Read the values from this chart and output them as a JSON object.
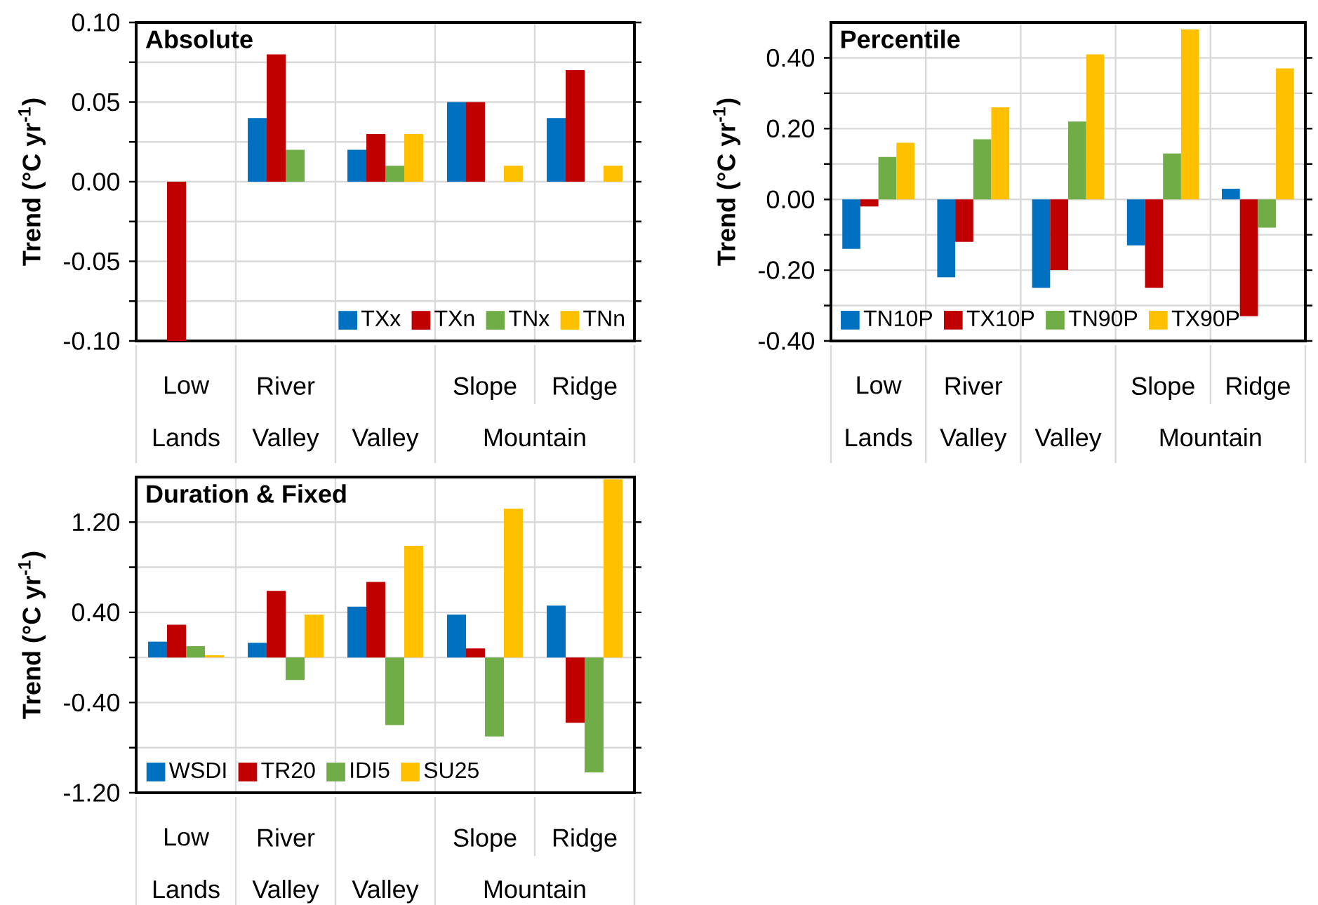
{
  "chart_data": [
    {
      "type": "bar",
      "title": "Absolute",
      "ylabel": "Trend (°C yr$^{-1}$)",
      "categories": [
        "Low",
        "River",
        null,
        "Slope",
        "Ridge"
      ],
      "annotations": [
        "Lands",
        "Valley",
        "Valley",
        "Mountain"
      ],
      "series": [
        {
          "name": "TXx",
          "color": "#0070c0",
          "values": [
            0,
            0.04,
            0.02,
            0.05,
            0.04
          ]
        },
        {
          "name": "TXn",
          "color": "#c00000",
          "values": [
            -0.1,
            0.08,
            0.03,
            0.05,
            0.07
          ]
        },
        {
          "name": "TNx",
          "color": "#70ad47",
          "values": [
            0,
            0.02,
            0.01,
            0,
            0
          ]
        },
        {
          "name": "TNn",
          "color": "#ffc000",
          "values": [
            0,
            0,
            0.03,
            0.01,
            0.01
          ]
        }
      ],
      "ylim": [
        -0.1,
        0.1
      ],
      "yticks": [
        {
          "value": -0.1,
          "label": "-0.10"
        },
        {
          "value": -0.075,
          "label": null
        },
        {
          "value": -0.05,
          "label": "-0.05"
        },
        {
          "value": -0.025,
          "label": null
        },
        {
          "value": 0,
          "label": "0.00"
        },
        {
          "value": 0.025,
          "label": null
        },
        {
          "value": 0.05,
          "label": "0.05"
        },
        {
          "value": 0.075,
          "label": null
        },
        {
          "value": 0.1,
          "label": "0.10"
        }
      ],
      "grid": true,
      "legend": "bottom right"
    },
    {
      "type": "bar",
      "title": "Percentile",
      "ylabel": "Trend (°C yr$^{-1}$)",
      "categories": [
        "Low",
        "River",
        null,
        "Slope",
        "Ridge"
      ],
      "annotations": [
        "Lands",
        "Valley",
        "Valley",
        "Mountain"
      ],
      "series": [
        {
          "name": "TN10P",
          "color": "#0070c0",
          "values": [
            -0.14,
            -0.22,
            -0.25,
            -0.13,
            0.03
          ]
        },
        {
          "name": "TX10P",
          "color": "#c00000",
          "values": [
            -0.02,
            -0.12,
            -0.2,
            -0.25,
            -0.33
          ]
        },
        {
          "name": "TN90P",
          "color": "#70ad47",
          "values": [
            0.12,
            0.17,
            0.22,
            0.13,
            -0.08
          ]
        },
        {
          "name": "TX90P",
          "color": "#ffc000",
          "values": [
            0.16,
            0.26,
            0.41,
            0.48,
            0.37
          ]
        }
      ],
      "ylim": [
        -0.4,
        0.5
      ],
      "yticks": [
        {
          "value": -0.4,
          "label": "-0.40"
        },
        {
          "value": -0.3,
          "label": null
        },
        {
          "value": -0.2,
          "label": "-0.20"
        },
        {
          "value": -0.1,
          "label": null
        },
        {
          "value": 0,
          "label": "0.00"
        },
        {
          "value": 0.1,
          "label": null
        },
        {
          "value": 0.2,
          "label": "0.20"
        },
        {
          "value": 0.3,
          "label": null
        },
        {
          "value": 0.4,
          "label": "0.40"
        }
      ],
      "grid": true,
      "legend": "bottom left"
    },
    {
      "type": "bar",
      "title": "Duration & Fixed",
      "ylabel": "Trend (°C yr$^{-1}$)",
      "categories": [
        "Low",
        "River",
        null,
        "Slope",
        "Ridge"
      ],
      "annotations": [
        "Lands",
        "Valley",
        "Valley",
        "Mountain"
      ],
      "series": [
        {
          "name": "WSDI",
          "color": "#0070c0",
          "values": [
            0.14,
            0.13,
            0.45,
            0.38,
            0.46
          ]
        },
        {
          "name": "TR20",
          "color": "#c00000",
          "values": [
            0.29,
            0.59,
            0.67,
            0.08,
            -0.58
          ]
        },
        {
          "name": "IDI5",
          "color": "#70ad47",
          "values": [
            0.1,
            -0.2,
            -0.6,
            -0.7,
            -1.02
          ]
        },
        {
          "name": "SU25",
          "color": "#ffc000",
          "values": [
            0.02,
            0.38,
            0.99,
            1.32,
            1.58
          ]
        }
      ],
      "ylim": [
        -1.2,
        1.6
      ],
      "yticks": [
        {
          "value": -1.2,
          "label": "-1.20"
        },
        {
          "value": -0.8,
          "label": null
        },
        {
          "value": -0.4,
          "label": "-0.40"
        },
        {
          "value": 0,
          "label": null
        },
        {
          "value": 0.4,
          "label": "0.40"
        },
        {
          "value": 0.8,
          "label": null
        },
        {
          "value": 1.2,
          "label": "1.20"
        }
      ],
      "grid": true,
      "legend": "bottom left"
    }
  ]
}
